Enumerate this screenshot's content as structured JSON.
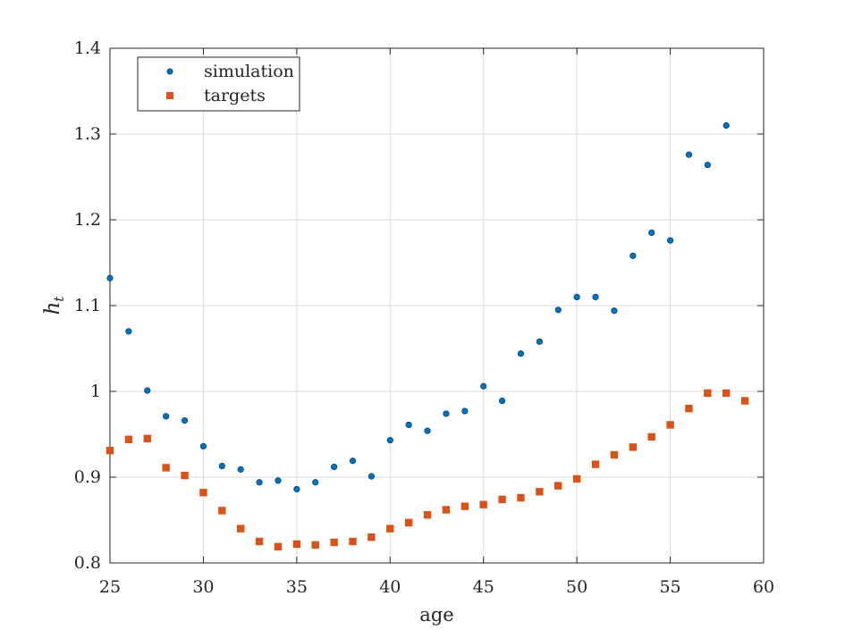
{
  "chart_data": {
    "type": "scatter",
    "xlabel": "age",
    "ylabel_base": "h",
    "ylabel_sub": "t",
    "xlim": [
      25,
      60
    ],
    "ylim": [
      0.8,
      1.4
    ],
    "xticks": [
      "25",
      "30",
      "35",
      "40",
      "45",
      "50",
      "55",
      "60"
    ],
    "yticks": [
      "0.8",
      "0.9",
      "1",
      "1.1",
      "1.2",
      "1.3",
      "1.4"
    ],
    "grid": true,
    "legend_position": "top-left",
    "series": [
      {
        "name": "simulation",
        "marker": "circle",
        "color": "#0072BD",
        "x": [
          25,
          26,
          27,
          28,
          29,
          30,
          31,
          32,
          33,
          34,
          35,
          36,
          37,
          38,
          39,
          40,
          41,
          42,
          43,
          44,
          45,
          46,
          47,
          48,
          49,
          50,
          51,
          52,
          53,
          54,
          55,
          56,
          57,
          58
        ],
        "y": [
          1.132,
          1.07,
          1.001,
          0.971,
          0.966,
          0.936,
          0.913,
          0.909,
          0.894,
          0.896,
          0.886,
          0.894,
          0.912,
          0.919,
          0.901,
          0.943,
          0.961,
          0.954,
          0.974,
          0.977,
          1.006,
          0.989,
          1.044,
          1.058,
          1.095,
          1.11,
          1.11,
          1.094,
          1.158,
          1.185,
          1.176,
          1.276,
          1.264,
          1.31
        ]
      },
      {
        "name": "targets",
        "marker": "square",
        "color": "#D95319",
        "x": [
          25,
          26,
          27,
          28,
          29,
          30,
          31,
          32,
          33,
          34,
          35,
          36,
          37,
          38,
          39,
          40,
          41,
          42,
          43,
          44,
          45,
          46,
          47,
          48,
          49,
          50,
          51,
          52,
          53,
          54,
          55,
          56,
          57,
          58,
          59
        ],
        "y": [
          0.931,
          0.944,
          0.945,
          0.911,
          0.902,
          0.882,
          0.861,
          0.84,
          0.825,
          0.819,
          0.822,
          0.821,
          0.824,
          0.825,
          0.83,
          0.84,
          0.847,
          0.856,
          0.862,
          0.866,
          0.868,
          0.874,
          0.876,
          0.883,
          0.89,
          0.898,
          0.915,
          0.926,
          0.935,
          0.947,
          0.961,
          0.98,
          0.998,
          0.998,
          0.989
        ]
      }
    ]
  }
}
